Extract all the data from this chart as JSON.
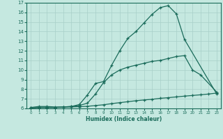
{
  "xlabel": "Humidex (Indice chaleur)",
  "bg_color": "#c5e8e0",
  "grid_color": "#a8cfc8",
  "line_color": "#1a6b5a",
  "xlim": [
    -0.5,
    23.5
  ],
  "ylim": [
    6,
    17
  ],
  "yticks": [
    6,
    7,
    8,
    9,
    10,
    11,
    12,
    13,
    14,
    15,
    16,
    17
  ],
  "xticks": [
    0,
    1,
    2,
    3,
    4,
    5,
    6,
    7,
    8,
    9,
    10,
    11,
    12,
    13,
    14,
    15,
    16,
    17,
    18,
    19,
    20,
    21,
    22,
    23
  ],
  "curve1_x": [
    0,
    1,
    2,
    3,
    4,
    5,
    6,
    7,
    8,
    9,
    10,
    11,
    12,
    13,
    14,
    15,
    16,
    17,
    18,
    19,
    23
  ],
  "curve1_y": [
    6.1,
    6.2,
    6.2,
    6.15,
    6.15,
    6.2,
    6.4,
    7.4,
    8.6,
    8.8,
    10.5,
    12.0,
    13.3,
    14.0,
    14.9,
    15.8,
    16.5,
    16.7,
    15.85,
    13.2,
    7.5
  ],
  "curve2_x": [
    0,
    1,
    2,
    3,
    4,
    5,
    6,
    7,
    8,
    9,
    10,
    11,
    12,
    13,
    14,
    15,
    16,
    17,
    18,
    19,
    20,
    21,
    23
  ],
  "curve2_y": [
    6.05,
    6.1,
    6.1,
    6.1,
    6.15,
    6.2,
    6.3,
    6.55,
    7.5,
    8.7,
    9.5,
    10.0,
    10.3,
    10.5,
    10.7,
    10.9,
    11.0,
    11.2,
    11.4,
    11.5,
    10.0,
    9.5,
    7.7
  ],
  "curve3_x": [
    0,
    1,
    2,
    3,
    4,
    5,
    6,
    7,
    8,
    9,
    10,
    11,
    12,
    13,
    14,
    15,
    16,
    17,
    18,
    19,
    20,
    21,
    22,
    23
  ],
  "curve3_y": [
    6.05,
    6.1,
    6.1,
    6.1,
    6.12,
    6.15,
    6.18,
    6.22,
    6.3,
    6.38,
    6.5,
    6.6,
    6.7,
    6.8,
    6.88,
    6.95,
    7.05,
    7.12,
    7.2,
    7.28,
    7.35,
    7.42,
    7.5,
    7.6
  ]
}
